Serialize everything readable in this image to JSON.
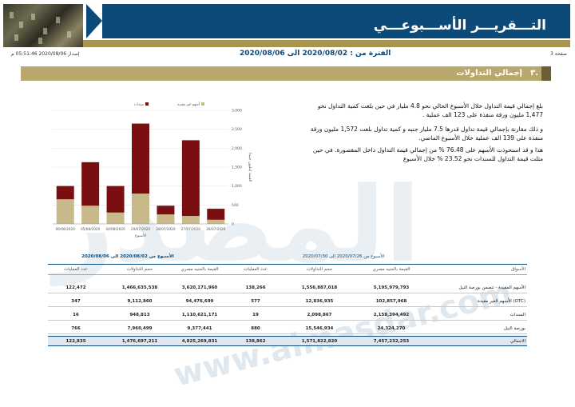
{
  "banner": {
    "title": "التـــقريـــر الأســـبوعـــي",
    "subtitle": "إصدار مركز معلومات البورصة المصرية"
  },
  "info": {
    "page": "صفحة 3",
    "period": "الفترة من : 2020/08/02 الى 2020/08/06",
    "issued": "إصدار 2020/08/06 05:51:46 م"
  },
  "section": {
    "number": "٣.",
    "title": "إجمالي التداولات"
  },
  "paragraphs": [
    "بلغ إجمالي قيمة التداول خلال الأسبوع الحالي نحو 4.8 مليار في حين بلغت كمية التداول نحو 1,477 مليون ورقة منفذة على 123 الف عملية .",
    "و ذلك مقارنة بإجمالي قيمة تداول قدرها 7.5 مليار جنيه و كمية تداول بلغت 1,572 مليون ورقة منفذة على 139 الف عملية خلال الأسبوع الماضي.",
    "هذا و قد استحوذت الأسهم على 76.48 % من إجمالي قيمة التداول داخل المقصورة. في حين مثلت قيمة التداول للسندات نحو 23.52 % خلال الأسبوع"
  ],
  "watermark": {
    "logo": "المصدر",
    "url": "www.almasdar.com"
  },
  "chart_data": {
    "type": "bar",
    "categories": [
      "06/08/2020",
      "05/08/2020",
      "04/08/2020",
      "29/07/2020",
      "28/07/2020",
      "27/07/2020",
      "26/07/2020"
    ],
    "series": [
      {
        "name": "أسهم غير مقيدة",
        "color": "#c8b98a",
        "values": [
          650,
          480,
          300,
          800,
          250,
          210,
          110
        ]
      },
      {
        "name": "سندات",
        "color": "#7a0f12",
        "values": [
          350,
          1150,
          700,
          1850,
          230,
          2000,
          290
        ]
      }
    ],
    "xlabel": "الأسبوع",
    "ylabel": "القيمة (مليون جنيه)",
    "yticks": [
      "0",
      "500",
      "1,000",
      "1,500",
      "2,000",
      "2,500",
      "3,000"
    ],
    "ylim": [
      0,
      3000
    ],
    "legend_position": "top"
  },
  "table": {
    "group_headers": [
      "الأسبوع من 2020/07/26 الى 2020/07/30",
      "الأسبوع من 2020/08/02 الى 2020/08/06"
    ],
    "columns": [
      "الأسواق",
      "القيمة بالجنيه مصري",
      "حجم التداولات",
      "عدد العمليات",
      "القيمة بالجنيه مصري",
      "حجم التداولات",
      "عدد العمليات"
    ],
    "rows": [
      {
        "market": "الأسهم المقيدة - تتضمن بورصة النيل",
        "prev_value": "5,195,979,793",
        "prev_volume": "1,556,887,018",
        "prev_trades": "138,266",
        "cur_value": "3,620,171,960",
        "cur_volume": "1,466,635,538",
        "cur_trades": "122,472"
      },
      {
        "market": "الأسهم الغير مقيدة (OTC)",
        "prev_value": "102,857,968",
        "prev_volume": "12,836,935",
        "prev_trades": "577",
        "cur_value": "94,476,699",
        "cur_volume": "9,112,860",
        "cur_trades": "347"
      },
      {
        "market": "السندات",
        "prev_value": "2,158,394,492",
        "prev_volume": "2,098,867",
        "prev_trades": "19",
        "cur_value": "1,110,621,171",
        "cur_volume": "948,813",
        "cur_trades": "16"
      },
      {
        "market": "بورصة النيل",
        "prev_value": "24,324,270",
        "prev_volume": "15,546,934",
        "prev_trades": "880",
        "cur_value": "9,377,441",
        "cur_volume": "7,960,499",
        "cur_trades": "766"
      }
    ],
    "total": {
      "market": "الاجمالي",
      "prev_value": "7,457,232,253",
      "prev_volume": "1,571,822,820",
      "prev_trades": "138,862",
      "cur_value": "4,825,269,831",
      "cur_volume": "1,476,697,211",
      "cur_trades": "122,835"
    }
  }
}
